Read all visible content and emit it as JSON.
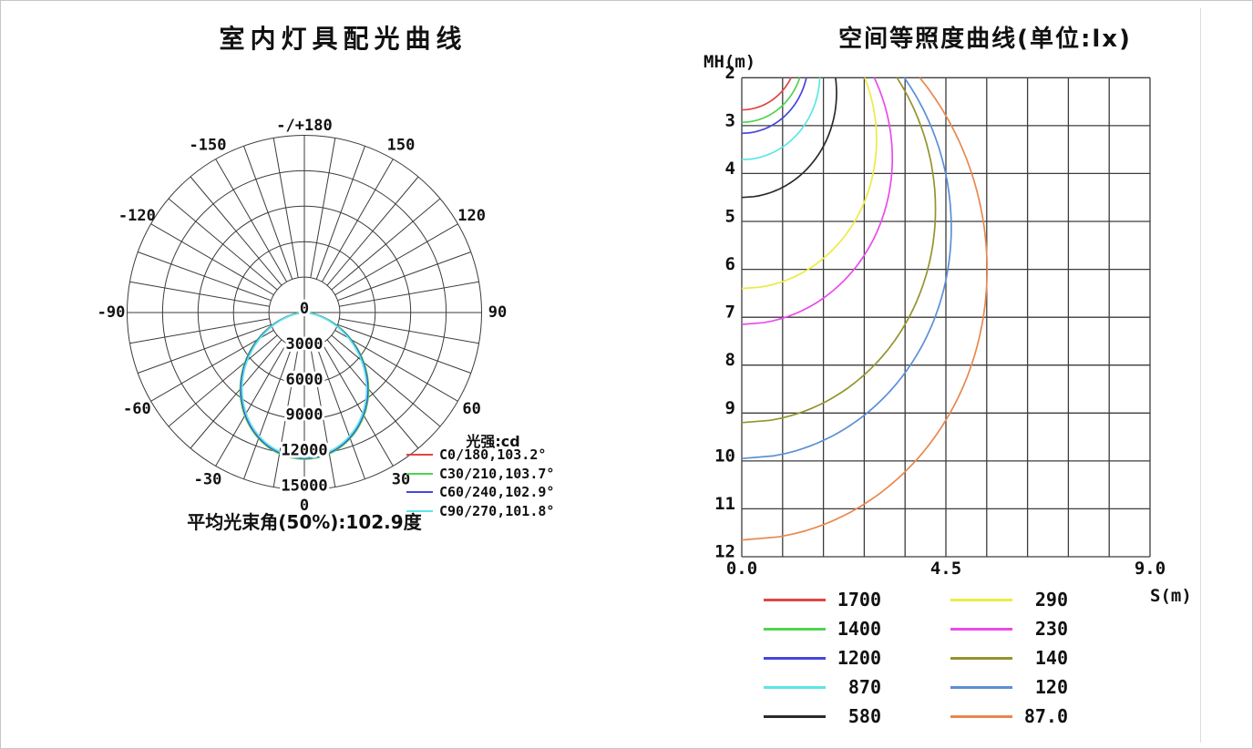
{
  "panel": {
    "background": "#ffffff",
    "border_color": "#c6c6c6",
    "divider_color": "#dcdcdc"
  },
  "chart_data": [
    {
      "type": "polar_photometric",
      "title": "室内灯具配光曲线",
      "footer": "平均光束角(50%):102.9度",
      "legend_title": "光强:cd",
      "unit": "cd",
      "grid_color": "#3c3c3c",
      "radial_ticks": [
        0,
        3000,
        6000,
        9000,
        12000,
        15000
      ],
      "radial_max": 15000,
      "angle_step_deg": 10,
      "angle_labels": [
        {
          "text": "-/+180",
          "deg": 180
        },
        {
          "text": "150",
          "deg": 150
        },
        {
          "text": "120",
          "deg": 120
        },
        {
          "text": "90",
          "deg": 90
        },
        {
          "text": "60",
          "deg": 60
        },
        {
          "text": "30",
          "deg": 30
        },
        {
          "text": "0",
          "deg": 0
        },
        {
          "text": "-30",
          "deg": -30
        },
        {
          "text": "-60",
          "deg": -60
        },
        {
          "text": "-90",
          "deg": -90
        },
        {
          "text": "-120",
          "deg": -120
        },
        {
          "text": "-150",
          "deg": -150
        }
      ],
      "series": [
        {
          "label": "C0/180,103.2°",
          "color": "#e04545",
          "peak_cd": 12300,
          "beam_angle_deg": 103.2
        },
        {
          "label": "C30/210,103.7°",
          "color": "#4fd44f",
          "peak_cd": 12400,
          "beam_angle_deg": 103.7
        },
        {
          "label": "C60/240,102.9°",
          "color": "#4646dd",
          "peak_cd": 12320,
          "beam_angle_deg": 102.9
        },
        {
          "label": "C90/270,101.8°",
          "color": "#5ce6e6",
          "peak_cd": 12240,
          "beam_angle_deg": 101.8
        }
      ]
    },
    {
      "type": "isolux_contours",
      "title": "空间等照度曲线(单位:lx)",
      "xlabel": "S(m)",
      "ylabel": "MH(m)",
      "xlim": [
        0,
        9
      ],
      "ylim": [
        2,
        12
      ],
      "x_tick_labels": [
        "0.0",
        "4.5",
        "9.0"
      ],
      "y_tick_labels": [
        "2",
        "3",
        "4",
        "5",
        "6",
        "7",
        "8",
        "9",
        "10",
        "11",
        "12"
      ],
      "grid_cols": 10,
      "grid_rows": 10,
      "grid_color": "#3c3c3c",
      "shape_exponent": 0.448,
      "photometric_model": {
        "peak_cd": 12000,
        "cos_exponent": 1.465
      },
      "levels": [
        {
          "lux": "1700",
          "color": "#e04545",
          "y_intercept_mh": 2.67,
          "top_intercept_s": 1.1
        },
        {
          "lux": "1400",
          "color": "#4fd44f",
          "y_intercept_mh": 2.93,
          "top_intercept_s": 1.3
        },
        {
          "lux": "1200",
          "color": "#4646dd",
          "y_intercept_mh": 3.16,
          "top_intercept_s": 1.45
        },
        {
          "lux": "870",
          "color": "#5ce6e6",
          "y_intercept_mh": 3.71,
          "top_intercept_s": 1.75
        },
        {
          "lux": "580",
          "color": "#2b2b2b",
          "y_intercept_mh": 4.5,
          "top_intercept_s": 2.2
        },
        {
          "lux": "290",
          "color": "#ebeb46",
          "y_intercept_mh": 6.4,
          "top_intercept_s": 2.75
        },
        {
          "lux": "230",
          "color": "#ea4bea",
          "y_intercept_mh": 7.15,
          "top_intercept_s": 2.95
        },
        {
          "lux": "140",
          "color": "#94942e",
          "y_intercept_mh": 9.2,
          "top_intercept_s": 3.45
        },
        {
          "lux": "120",
          "color": "#5c8fd6",
          "y_intercept_mh": 9.95,
          "top_intercept_s": 3.6
        },
        {
          "lux": "87.0",
          "color": "#e8884f",
          "y_intercept_mh": 11.65,
          "top_intercept_s": 3.9
        }
      ]
    }
  ]
}
